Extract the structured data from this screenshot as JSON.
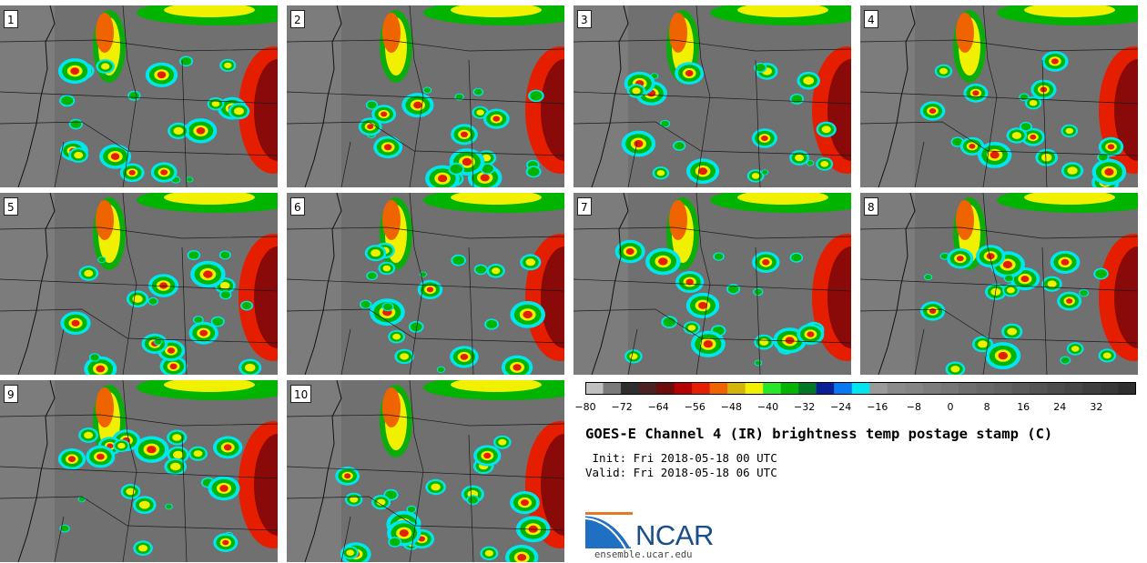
{
  "panels": [
    {
      "label": "1"
    },
    {
      "label": "2"
    },
    {
      "label": "3"
    },
    {
      "label": "4"
    },
    {
      "label": "5"
    },
    {
      "label": "6"
    },
    {
      "label": "7"
    },
    {
      "label": "8"
    },
    {
      "label": "9"
    },
    {
      "label": "10"
    }
  ],
  "colorbar": {
    "colors": [
      "#c0c0c0",
      "#7a7a7a",
      "#2e2e2e",
      "#4a2222",
      "#6e0c0c",
      "#b40000",
      "#e61e00",
      "#f06400",
      "#d2b40a",
      "#f0f000",
      "#28e628",
      "#00b400",
      "#007828",
      "#0a1e96",
      "#0a78f0",
      "#00e6f0",
      "#9a9a9a",
      "#8a8a8a",
      "#848484",
      "#7c7c7c",
      "#767676",
      "#6e6e6e",
      "#686868",
      "#626262",
      "#5a5a5a",
      "#545454",
      "#4c4c4c",
      "#464646",
      "#3e3e3e",
      "#383838",
      "#2e2e2e"
    ],
    "tick_labels": [
      "−80",
      "−72",
      "−64",
      "−56",
      "−48",
      "−40",
      "−32",
      "−24",
      "−16",
      "−8",
      "0",
      "8",
      "16",
      "24",
      "32"
    ]
  },
  "title": "GOES-E Channel 4 (IR) brightness temp postage stamp (C)",
  "init": " Init: Fri 2018-05-18 00 UTC",
  "valid": "Valid: Fri 2018-05-18 06 UTC",
  "logo_text": "NCAR",
  "url": "ensemble.ucar.edu"
}
